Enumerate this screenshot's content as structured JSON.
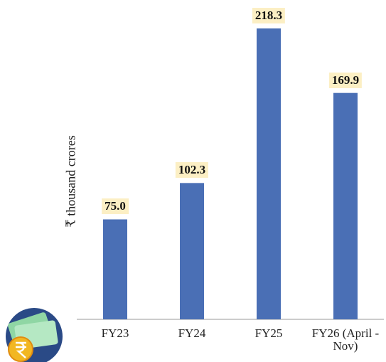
{
  "chart_data": {
    "type": "bar",
    "y_label": "₹ thousand crores",
    "categories": [
      "FY23",
      "FY24",
      "FY25",
      "FY26 (April - Nov)"
    ],
    "values": [
      75.0,
      102.3,
      218.3,
      169.9
    ],
    "value_labels": [
      "75.0",
      "102.3",
      "218.3",
      "169.9"
    ],
    "color": "#4a6fb5",
    "label_background": "#fcefc4"
  }
}
